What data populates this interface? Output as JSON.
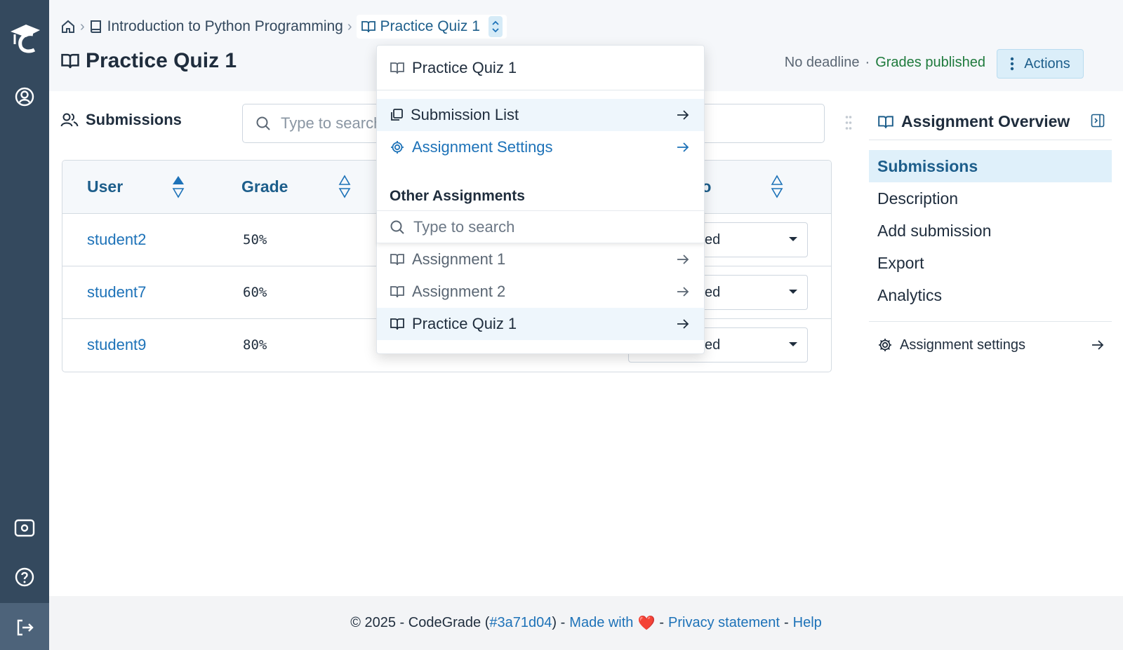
{
  "sidebar": {
    "items": [
      {
        "icon": "graduation-cap-logo"
      },
      {
        "icon": "user-circle-icon"
      },
      {
        "icon": "admin-settings-icon"
      },
      {
        "icon": "help-icon"
      },
      {
        "icon": "logout-icon"
      }
    ]
  },
  "breadcrumb": {
    "course": "Introduction to Python Programming",
    "assignment": "Practice Quiz 1"
  },
  "header": {
    "title": "Practice Quiz 1",
    "deadline": "No deadline",
    "separator": "·",
    "grades_status": "Grades published",
    "actions_label": "Actions"
  },
  "submissions": {
    "heading": "Submissions",
    "search_placeholder": "Type to search",
    "columns": [
      "User",
      "Grade",
      "To"
    ],
    "rows": [
      {
        "user": "student2",
        "grade": "50%",
        "assigned_partial": "ed"
      },
      {
        "user": "student7",
        "grade": "60%",
        "assigned_partial": "ed"
      },
      {
        "user": "student9",
        "grade": "80%",
        "assigned_partial": "ed"
      }
    ]
  },
  "dropdown": {
    "current": "Practice Quiz 1",
    "links": [
      "Submission List",
      "Assignment Settings"
    ],
    "other_heading": "Other Assignments",
    "search_placeholder": "Type to search",
    "assignments": [
      "Assignment 1",
      "Assignment 2",
      "Practice Quiz 1"
    ]
  },
  "overview": {
    "title": "Assignment Overview",
    "nav": [
      "Submissions",
      "Description",
      "Add submission",
      "Export",
      "Analytics"
    ],
    "settings_link": "Assignment settings"
  },
  "footer": {
    "copyright": "© 2025 - CodeGrade (",
    "version": "#3a71d04",
    "close_paren": ") -",
    "made_with": "Made with",
    "heart": "❤️",
    "dash": "-",
    "privacy": "Privacy statement",
    "help": "Help"
  },
  "colors": {
    "sidebar": "#34495e",
    "accent": "#1d72b8",
    "published": "#1e7a3c"
  }
}
